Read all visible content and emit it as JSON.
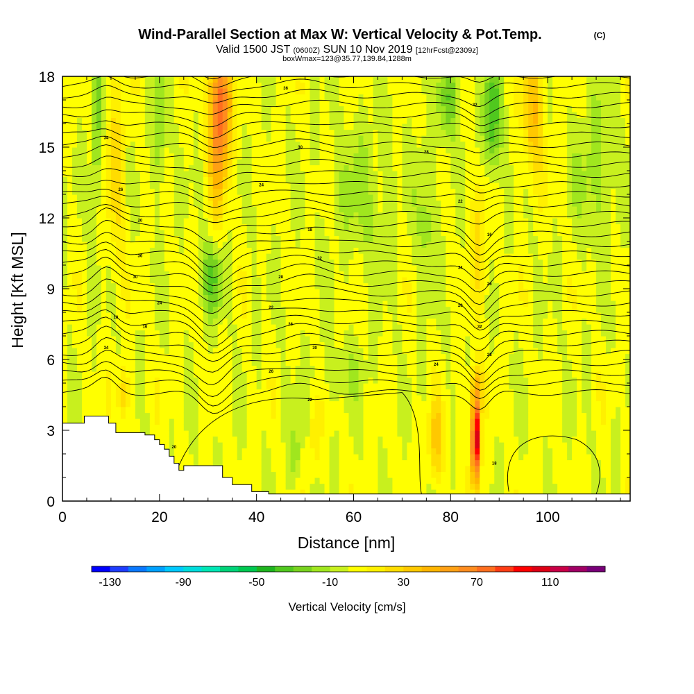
{
  "title": {
    "main": "Wind-Parallel Section at Max W: Vertical Velocity & Pot.Temp.",
    "copyright": "(C)",
    "valid_line": {
      "valid": "Valid 1500 JST",
      "utc": "(0600Z)",
      "date": "SUN 10 Nov 2019",
      "fcst": "[12hrFcst@2309z]"
    },
    "box_line": "boxWmax=123@35.77,139.84,1288m"
  },
  "chart_data": {
    "type": "heatmap",
    "xlabel": "Distance [nm]",
    "ylabel": "Height [Kft MSL]",
    "xlim": [
      0,
      117
    ],
    "ylim": [
      0,
      18
    ],
    "xticks": [
      0,
      20,
      40,
      60,
      80,
      100
    ],
    "yticks": [
      0,
      3,
      6,
      9,
      12,
      15,
      18
    ],
    "colorbar": {
      "title": "Vertical Velocity [cm/s]",
      "tick_values": [
        -130,
        -90,
        -50,
        -10,
        30,
        70,
        110
      ],
      "tick_labels": [
        "-130",
        "-90",
        "-50",
        "-10",
        "30",
        "70",
        "110"
      ],
      "range": [
        -140,
        140
      ],
      "step": 10,
      "colors": [
        "#0000ff",
        "#1e3cff",
        "#0a78ff",
        "#00a0ff",
        "#00c8ff",
        "#00dcdc",
        "#00e6b4",
        "#00d278",
        "#00c850",
        "#1eb41e",
        "#50c81e",
        "#78d21e",
        "#a0e61e",
        "#c8f01e",
        "#ffff00",
        "#fff000",
        "#ffdc00",
        "#ffc800",
        "#ffb400",
        "#ffa014",
        "#ff8c1e",
        "#ff6e1e",
        "#ff3c14",
        "#ff0000",
        "#dc0014",
        "#c80046",
        "#a00064",
        "#780078"
      ]
    },
    "wmax": {
      "value": 123,
      "lat": 35.77,
      "lon": 139.84,
      "height_m": 1288,
      "distance_nm": 85
    },
    "features": [
      {
        "x": 32,
        "z0": 13.5,
        "z1": 18,
        "w": 80,
        "label": "updraft"
      },
      {
        "x": 85,
        "z0": 0.5,
        "z1": 5.5,
        "w": 123,
        "label": "updraft"
      },
      {
        "x": 77,
        "z0": 1.0,
        "z1": 4.5,
        "w": 35,
        "label": "updraft"
      },
      {
        "x": 97,
        "z0": 14,
        "z1": 18,
        "w": 40,
        "label": "updraft"
      },
      {
        "x": 88,
        "z0": 14,
        "z1": 18,
        "w": -35,
        "label": "downdraft"
      },
      {
        "x": 31,
        "z0": 8,
        "z1": 11,
        "w": -30,
        "label": "downdraft"
      }
    ],
    "terrain": {
      "x": [
        0,
        4.5,
        4.5,
        9.5,
        9.5,
        11,
        11,
        17,
        17,
        19,
        19,
        20,
        20,
        21,
        21,
        22,
        22,
        23,
        23,
        24,
        24,
        25,
        25,
        33,
        33,
        35,
        35,
        39,
        39,
        42.5,
        42.5,
        117
      ],
      "z": [
        3.3,
        3.3,
        3.6,
        3.6,
        3.3,
        3.3,
        2.9,
        2.9,
        2.8,
        2.8,
        2.6,
        2.6,
        2.4,
        2.4,
        2.2,
        2.2,
        1.9,
        1.9,
        1.6,
        1.6,
        1.3,
        1.3,
        1.5,
        1.5,
        1.0,
        1.0,
        0.7,
        0.7,
        0.4,
        0.4,
        0.3,
        0.3
      ]
    },
    "isentrope_labels": [
      "36",
      "32",
      "34",
      "30",
      "28",
      "26",
      "24",
      "22",
      "20",
      "18",
      "16"
    ]
  }
}
